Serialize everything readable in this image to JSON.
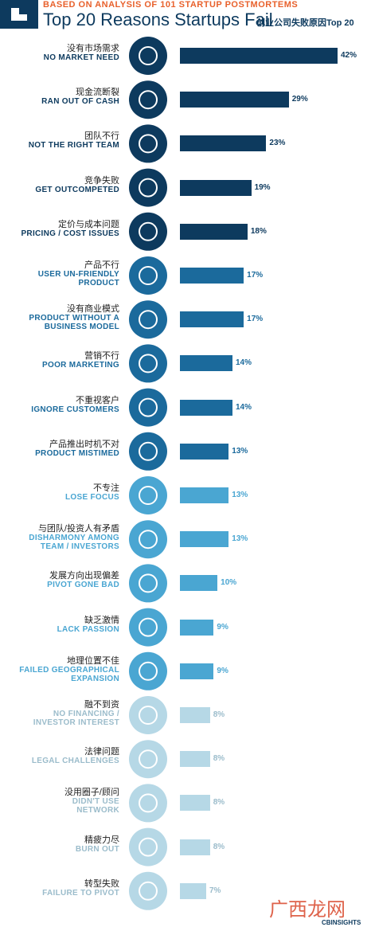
{
  "chart_data": {
    "type": "bar",
    "subtitle": "BASED ON ANALYSIS OF 101 STARTUP POSTMORTEMS",
    "title": "Top 20 Reasons Startups Fail",
    "title_cn": "创业公司失败原因Top 20",
    "categories_cn": [
      "没有市场需求",
      "现金流断裂",
      "团队不行",
      "竞争失败",
      "定价与成本问题",
      "产品不行",
      "没有商业模式",
      "营销不行",
      "不重视客户",
      "产品推出时机不对",
      "不专注",
      "与团队/投资人有矛盾",
      "发展方向出现偏差",
      "缺乏激情",
      "地理位置不佳",
      "融不到资",
      "法律问题",
      "没用圈子/顾问",
      "精疲力尽",
      "转型失败"
    ],
    "categories": [
      "NO MARKET NEED",
      "RAN OUT OF CASH",
      "NOT THE RIGHT TEAM",
      "GET OUTCOMPETED",
      "PRICING / COST ISSUES",
      "USER UN-FRIENDLY\nPRODUCT",
      "PRODUCT WITHOUT A\nBUSINESS MODEL",
      "POOR MARKETING",
      "IGNORE CUSTOMERS",
      "PRODUCT MISTIMED",
      "LOSE FOCUS",
      "DISHARMONY AMONG\nTEAM / INVESTORS",
      "PIVOT GONE BAD",
      "LACK PASSION",
      "FAILED GEOGRAPHICAL\nEXPANSION",
      "NO FINANCING /\nINVESTOR INTEREST",
      "LEGAL CHALLENGES",
      "DIDN'T USE\nNETWORK",
      "BURN OUT",
      "FAILURE TO PIVOT"
    ],
    "values": [
      42,
      29,
      23,
      19,
      18,
      17,
      17,
      14,
      14,
      13,
      13,
      13,
      10,
      9,
      9,
      8,
      8,
      8,
      8,
      7
    ],
    "value_labels": [
      "42%",
      "29%",
      "23%",
      "19%",
      "18%",
      "17%",
      "17%",
      "14%",
      "14%",
      "13%",
      "13%",
      "13%",
      "10%",
      "9%",
      "9%",
      "8%",
      "8%",
      "8%",
      "8%",
      "7%"
    ],
    "colors": [
      "#0d3a5e",
      "#0d3a5e",
      "#0d3a5e",
      "#0d3a5e",
      "#0d3a5e",
      "#1b6a9c",
      "#1b6a9c",
      "#1b6a9c",
      "#1b6a9c",
      "#1b6a9c",
      "#4aa6d2",
      "#4aa6d2",
      "#4aa6d2",
      "#4aa6d2",
      "#4aa6d2",
      "#b6d8e6",
      "#b6d8e6",
      "#b6d8e6",
      "#b6d8e6",
      "#b6d8e6"
    ],
    "source": "CBINSIGHTS",
    "watermark": "广西龙网"
  }
}
